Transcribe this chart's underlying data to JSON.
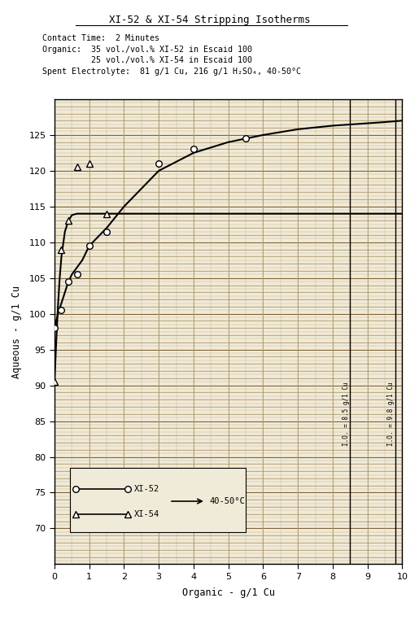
{
  "title": "XI-52 & XI-54 Stripping Isotherms",
  "subtitle_lines": [
    "Contact Time:  2 Minutes",
    "Organic:  35 vol./vol.% XI-52 in Escaid 100",
    "          25 vol./vol.% XI-54 in Escaid 100",
    "Spent Electrolyte:  81 g/1 Cu, 216 g/1 H₂SO₄, 40-50°C"
  ],
  "xlabel": "Organic - g/1 Cu",
  "ylabel": "Aqueous - g/1 Cu",
  "xlim": [
    0,
    10
  ],
  "ylim": [
    65,
    130
  ],
  "yticks": [
    70,
    75,
    80,
    85,
    90,
    95,
    100,
    105,
    110,
    115,
    120,
    125
  ],
  "xticks": [
    0,
    1,
    2,
    3,
    4,
    5,
    6,
    7,
    8,
    9,
    10
  ],
  "xi52_data_x": [
    0.0,
    0.2,
    0.4,
    0.65,
    1.0,
    1.5,
    3.0,
    4.0,
    5.5
  ],
  "xi52_data_y": [
    98.0,
    100.5,
    104.5,
    105.5,
    109.5,
    111.5,
    121.0,
    123.0,
    124.5
  ],
  "xi52_curve_x": [
    0.0,
    0.1,
    0.2,
    0.3,
    0.4,
    0.5,
    0.65,
    0.8,
    1.0,
    1.3,
    1.5,
    2.0,
    3.0,
    4.0,
    5.0,
    6.0,
    7.0,
    8.0,
    9.5,
    10.0
  ],
  "xi52_curve_y": [
    98.0,
    100.0,
    101.5,
    103.0,
    104.5,
    105.5,
    106.5,
    107.5,
    109.5,
    111.0,
    112.0,
    115.0,
    120.0,
    122.5,
    124.0,
    125.0,
    125.8,
    126.3,
    126.8,
    127.0
  ],
  "xi54_data_x": [
    0.0,
    0.2,
    0.4,
    0.65,
    1.0,
    1.5
  ],
  "xi54_data_y": [
    90.5,
    109.0,
    113.0,
    120.5,
    121.0,
    114.0
  ],
  "xi54_curve_x": [
    0.0,
    0.05,
    0.1,
    0.15,
    0.2,
    0.3,
    0.4,
    0.5,
    0.65,
    0.8,
    1.0,
    1.3,
    1.5,
    2.0,
    3.0,
    4.0,
    5.0,
    6.0,
    7.0,
    8.0,
    9.5,
    10.0
  ],
  "xi54_curve_y": [
    90.5,
    96.0,
    101.0,
    105.0,
    108.0,
    111.5,
    113.0,
    113.8,
    114.0,
    114.0,
    114.0,
    114.0,
    114.0,
    114.0,
    114.0,
    114.0,
    114.0,
    114.0,
    114.0,
    114.0,
    114.0,
    114.0
  ],
  "vline1_x": 8.5,
  "vline1_label": "I.O. = 8.5 g/1 Cu",
  "vline2_x": 9.8,
  "vline2_label": "I.O. = 9.8 g/1 Cu",
  "legend_xi52_label": "XI-52",
  "legend_xi54_label": "XI-54",
  "legend_temp": "40-50°C",
  "bg_color": "#f0ead8",
  "line_color": "#000000"
}
